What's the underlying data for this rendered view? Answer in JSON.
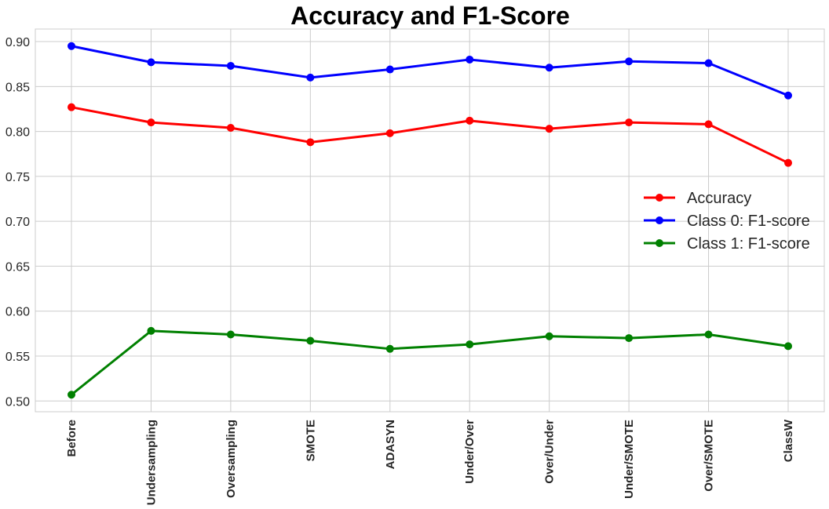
{
  "chart_data": {
    "type": "line",
    "title": "Accuracy and F1-Score",
    "xlabel": "",
    "ylabel": "",
    "categories": [
      "Before",
      "Undersampling",
      "Oversampling",
      "SMOTE",
      "ADASYN",
      "Under/Over",
      "Over/Under",
      "Under/SMOTE",
      "Over/SMOTE",
      "ClassW"
    ],
    "ylim": [
      0.488,
      0.914
    ],
    "yticks": [
      "0.50",
      "0.55",
      "0.60",
      "0.65",
      "0.70",
      "0.75",
      "0.80",
      "0.85",
      "0.90"
    ],
    "grid": true,
    "legend_position": "center-right",
    "series": [
      {
        "name": "Accuracy",
        "color": "#ff0000",
        "values": [
          0.827,
          0.81,
          0.804,
          0.788,
          0.798,
          0.812,
          0.803,
          0.81,
          0.808,
          0.765
        ]
      },
      {
        "name": "Class 0: F1-score",
        "color": "#0000ff",
        "values": [
          0.895,
          0.877,
          0.873,
          0.86,
          0.869,
          0.88,
          0.871,
          0.878,
          0.876,
          0.84
        ]
      },
      {
        "name": "Class 1: F1-score",
        "color": "#008000",
        "values": [
          0.507,
          0.578,
          0.574,
          0.567,
          0.558,
          0.563,
          0.572,
          0.57,
          0.574,
          0.561
        ]
      }
    ]
  }
}
